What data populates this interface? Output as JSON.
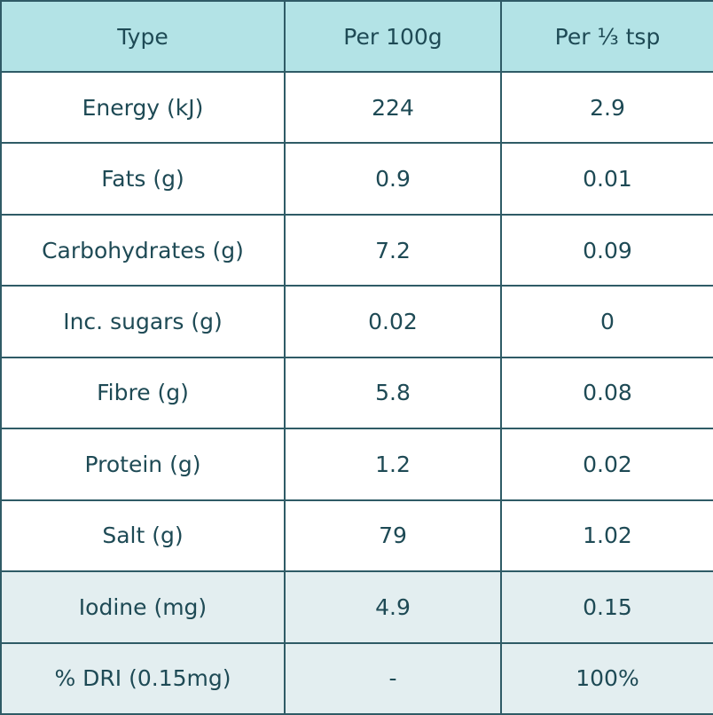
{
  "table": {
    "headers": [
      "Type",
      "Per 100g",
      "Per ¹⁄₃ tsp"
    ],
    "rows": [
      {
        "type": "Energy (kJ)",
        "per_100g": "224",
        "per_third_tsp": "2.9",
        "shaded": false
      },
      {
        "type": "Fats (g)",
        "per_100g": "0.9",
        "per_third_tsp": "0.01",
        "shaded": false
      },
      {
        "type": "Carbohydrates (g)",
        "per_100g": "7.2",
        "per_third_tsp": "0.09",
        "shaded": false
      },
      {
        "type": "Inc. sugars (g)",
        "per_100g": "0.02",
        "per_third_tsp": "0",
        "shaded": false
      },
      {
        "type": "Fibre (g)",
        "per_100g": "5.8",
        "per_third_tsp": "0.08",
        "shaded": false
      },
      {
        "type": "Protein (g)",
        "per_100g": "1.2",
        "per_third_tsp": "0.02",
        "shaded": false
      },
      {
        "type": "Salt (g)",
        "per_100g": "79",
        "per_third_tsp": "1.02",
        "shaded": false
      },
      {
        "type": "Iodine (mg)",
        "per_100g": "4.9",
        "per_third_tsp": "0.15",
        "shaded": true
      },
      {
        "type": "% DRI (0.15mg)",
        "per_100g": "-",
        "per_third_tsp": "100%",
        "shaded": true
      }
    ]
  },
  "colors": {
    "header_bg": "#b3e3e6",
    "shaded_row_bg": "#e3eef0",
    "border": "#2f5b66",
    "text": "#1e4a55"
  }
}
